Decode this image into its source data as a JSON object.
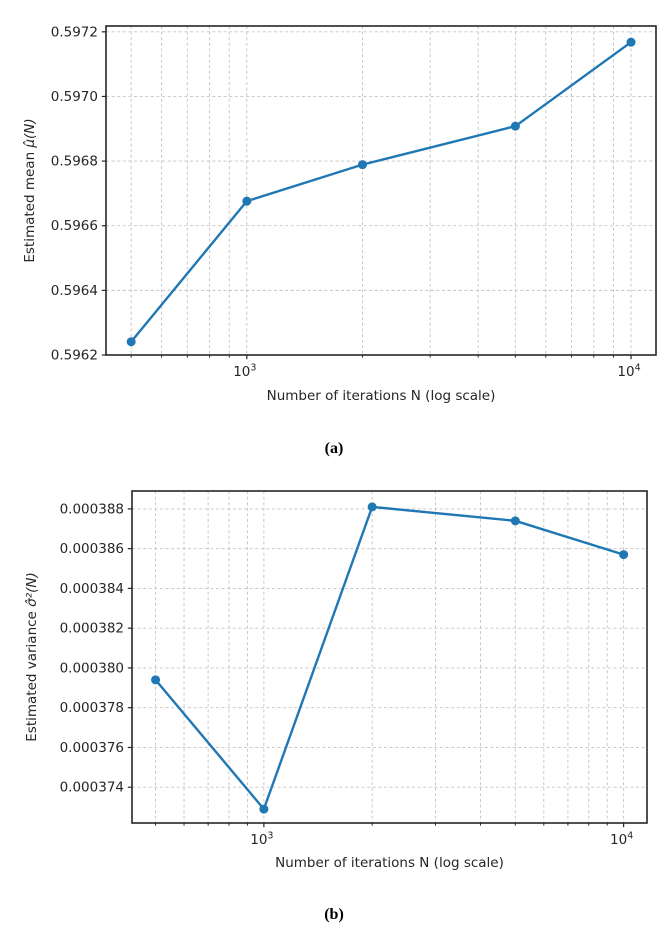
{
  "page": {
    "background": "#ffffff"
  },
  "colors": {
    "line": "#1f77b4",
    "grid": "#c3c3c3",
    "spine": "#262626",
    "text": "#262626"
  },
  "chart_data": [
    {
      "type": "line",
      "caption": "(a)",
      "title": "",
      "xlabel": "Number of iterations N (log scale)",
      "ylabel": [
        {
          "text": "Estimated mean ",
          "italic": false
        },
        {
          "text": "μ̂(N)",
          "italic": true
        }
      ],
      "xscale": "log",
      "grid": true,
      "marker": "circle",
      "x": [
        500,
        1000,
        2000,
        5000,
        10000
      ],
      "y": [
        0.596241,
        0.596676,
        0.596789,
        0.596908,
        0.597168
      ],
      "xlim": [
        430,
        11614
      ],
      "ylim": [
        0.5962,
        0.597218
      ],
      "yticks": [
        0.5962,
        0.5964,
        0.5966,
        0.5968,
        0.597,
        0.5972
      ],
      "ytick_decimals": 4,
      "xticks": [
        {
          "value": 1000,
          "base": "10",
          "exp": "3"
        },
        {
          "value": 10000,
          "base": "10",
          "exp": "4"
        }
      ]
    },
    {
      "type": "line",
      "caption": "(b)",
      "title": "",
      "xlabel": "Number of iterations N (log scale)",
      "ylabel": [
        {
          "text": "Estimated variance ",
          "italic": false
        },
        {
          "text": "σ̂²(N)",
          "italic": true
        }
      ],
      "xscale": "log",
      "grid": true,
      "marker": "circle",
      "x": [
        500,
        1000,
        2000,
        5000,
        10000
      ],
      "y": [
        0.0003794,
        0.0003729,
        0.0003881,
        0.0003874,
        0.0003857
      ],
      "xlim": [
        430,
        11614
      ],
      "ylim": [
        0.0003722,
        0.0003889
      ],
      "yticks": [
        0.000374,
        0.000376,
        0.000378,
        0.00038,
        0.000382,
        0.000384,
        0.000386,
        0.000388
      ],
      "ytick_decimals": 6,
      "xticks": [
        {
          "value": 1000,
          "base": "10",
          "exp": "3"
        },
        {
          "value": 10000,
          "base": "10",
          "exp": "4"
        }
      ]
    }
  ]
}
